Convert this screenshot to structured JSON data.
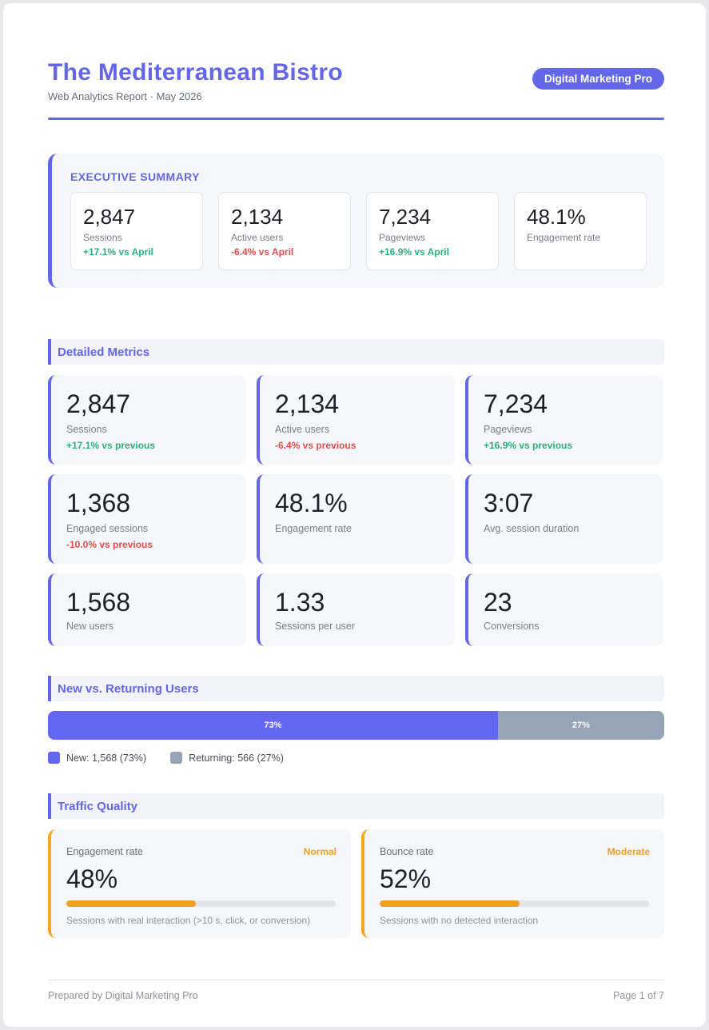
{
  "header": {
    "title": "The Mediterranean Bistro",
    "subtitle": "Web Analytics Report · May 2026",
    "brand": "Digital Marketing Pro"
  },
  "executive_summary": {
    "title": "EXECUTIVE SUMMARY",
    "cards": [
      {
        "value": "2,847",
        "label": "Sessions",
        "delta": "+17.1% vs April",
        "trend": "pos"
      },
      {
        "value": "2,134",
        "label": "Active users",
        "delta": "-6.4% vs April",
        "trend": "neg"
      },
      {
        "value": "7,234",
        "label": "Pageviews",
        "delta": "+16.9% vs April",
        "trend": "pos"
      },
      {
        "value": "48.1%",
        "label": "Engagement rate",
        "delta": "",
        "trend": ""
      }
    ]
  },
  "detailed_metrics": {
    "title": "Detailed Metrics",
    "cards": [
      {
        "value": "2,847",
        "label": "Sessions",
        "delta": "+17.1% vs previous",
        "trend": "pos"
      },
      {
        "value": "2,134",
        "label": "Active users",
        "delta": "-6.4% vs previous",
        "trend": "neg"
      },
      {
        "value": "7,234",
        "label": "Pageviews",
        "delta": "+16.9% vs previous",
        "trend": "pos"
      },
      {
        "value": "1,368",
        "label": "Engaged sessions",
        "delta": "-10.0% vs previous",
        "trend": "neg"
      },
      {
        "value": "48.1%",
        "label": "Engagement rate",
        "delta": "",
        "trend": ""
      },
      {
        "value": "3:07",
        "label": "Avg. session duration",
        "delta": "",
        "trend": ""
      },
      {
        "value": "1,568",
        "label": "New users",
        "delta": "",
        "trend": ""
      },
      {
        "value": "1.33",
        "label": "Sessions per user",
        "delta": "",
        "trend": ""
      },
      {
        "value": "23",
        "label": "Conversions",
        "delta": "",
        "trend": ""
      }
    ]
  },
  "new_vs_returning": {
    "title": "New vs. Returning Users",
    "new_share": 73,
    "returning_share": 27,
    "new_bar_label": "73%",
    "returning_bar_label": "27%",
    "new_legend": "New: 1,568 (73%)",
    "returning_legend": "Returning: 566 (27%)",
    "new_color": "#6366f1",
    "returning_color": "#97a3b6"
  },
  "traffic_quality": {
    "title": "Traffic Quality",
    "cards": [
      {
        "label": "Engagement rate",
        "status": "Normal",
        "value": "48%",
        "level": 0.48,
        "note": "Sessions with real interaction (>10 s, click, or conversion)"
      },
      {
        "label": "Bounce rate",
        "status": "Moderate",
        "value": "52%",
        "level": 0.52,
        "note": "Sessions with no detected interaction"
      }
    ]
  },
  "footer": {
    "left": "Prepared by Digital Marketing Pro",
    "right": "Page 1 of 7"
  },
  "colors": {
    "accent": "#6366e8",
    "positive": "#2bb07a",
    "negative": "#e04b4b",
    "warning": "#f0a020"
  }
}
